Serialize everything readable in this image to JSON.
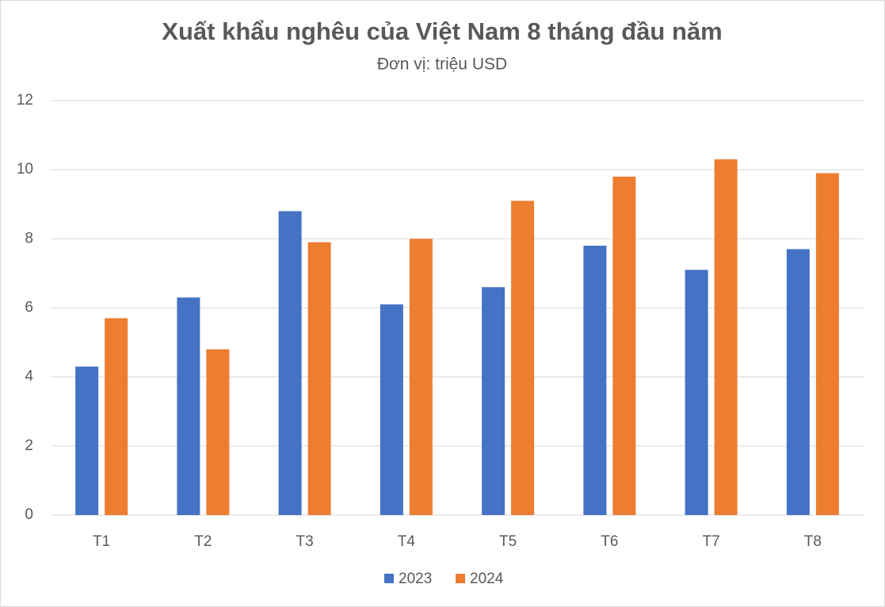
{
  "chart_data": {
    "type": "bar",
    "title": "Xuất khẩu nghêu của Việt Nam 8 tháng đầu năm",
    "subtitle": "Đơn vị: triệu USD",
    "categories": [
      "T1",
      "T2",
      "T3",
      "T4",
      "T5",
      "T6",
      "T7",
      "T8"
    ],
    "series": [
      {
        "name": "2023",
        "color": "#4472c4",
        "values": [
          4.3,
          6.3,
          8.8,
          6.1,
          6.6,
          7.8,
          7.1,
          7.7
        ]
      },
      {
        "name": "2024",
        "color": "#ed7d31",
        "values": [
          5.7,
          4.8,
          7.9,
          8.0,
          9.1,
          9.8,
          10.3,
          9.9
        ]
      }
    ],
    "ylim": [
      0,
      12
    ],
    "yticks": [
      0,
      2,
      4,
      6,
      8,
      10,
      12
    ],
    "grid": true,
    "legend": "bottom"
  }
}
